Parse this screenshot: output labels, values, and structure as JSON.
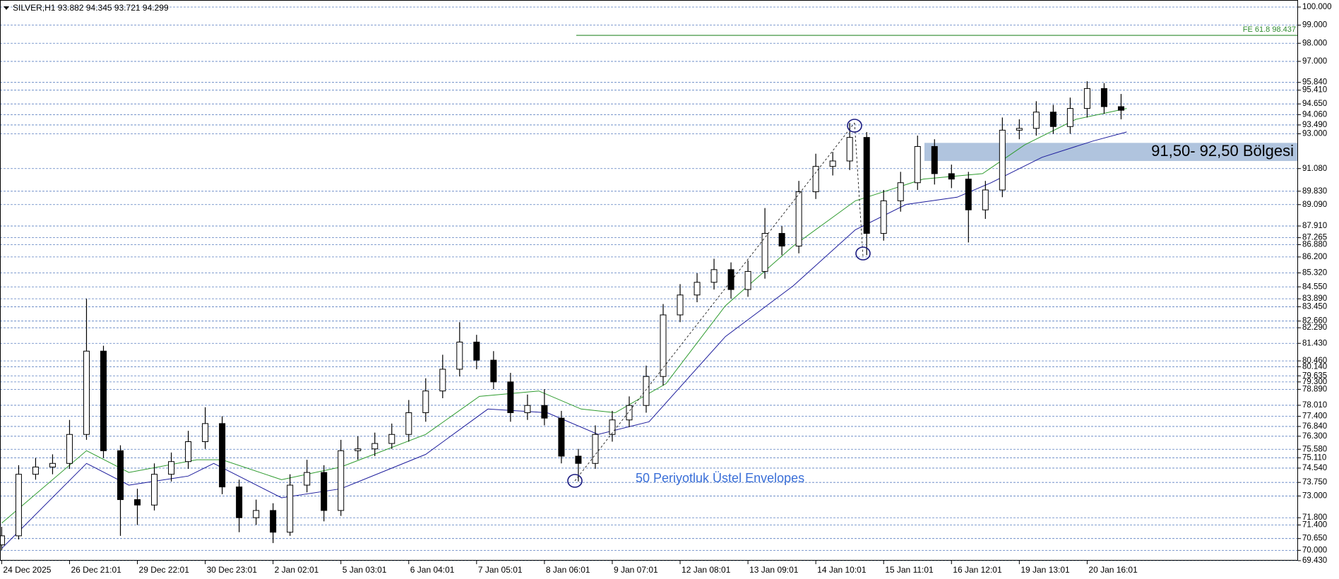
{
  "chart_data": {
    "type": "candlestick",
    "title": "SILVER,H1 93.882 94.345 93.721 94.299",
    "annotation": "50 Periyotluk Üstel Envelopes",
    "zone": {
      "label": "91,50- 92,50 Bölgesi",
      "low": 91.5,
      "high": 92.5,
      "color": "#b0c4de"
    },
    "fe_line": {
      "label": "FE 61.8 98.437",
      "value": 98.437,
      "color": "#2e8b2e"
    },
    "xlim": [
      -0.6,
      458.6
    ],
    "ylim": [
      69.43,
      100.35
    ],
    "grid": true,
    "up_color": "#ffffff",
    "down_color": "#000000",
    "x": [
      0,
      6,
      12,
      18,
      24,
      30,
      36,
      42,
      48,
      54,
      60,
      66,
      72,
      78,
      84,
      90,
      96,
      102,
      108,
      114,
      120,
      126,
      132,
      138,
      144,
      150,
      156,
      162,
      168,
      174,
      180,
      186,
      192,
      198,
      204,
      210,
      216,
      222,
      228,
      234,
      240,
      246,
      252,
      258,
      264,
      270,
      276,
      282,
      288,
      294,
      300,
      306,
      312,
      318,
      324,
      330,
      336,
      342,
      348,
      354,
      360,
      366,
      372,
      378,
      384,
      390,
      396
    ],
    "open": [
      70.3,
      70.8,
      74.2,
      74.6,
      74.8,
      76.4,
      81.0,
      75.5,
      72.8,
      72.5,
      74.2,
      74.9,
      76.0,
      77.0,
      73.5,
      71.8,
      72.2,
      71.0,
      73.6,
      74.3,
      72.2,
      75.5,
      75.6,
      75.9,
      76.4,
      77.6,
      78.8,
      80.0,
      81.5,
      80.5,
      79.3,
      77.6,
      78.0,
      77.3,
      75.2,
      74.8,
      76.4,
      77.2,
      78.0,
      79.6,
      83.0,
      84.1,
      84.8,
      85.5,
      84.4,
      85.4,
      87.5,
      86.8,
      89.8,
      91.2,
      91.5,
      92.8,
      87.5,
      89.3,
      90.3,
      92.3,
      90.8,
      90.5,
      88.8,
      89.9,
      93.2,
      93.3,
      94.2,
      93.4,
      94.4,
      95.5,
      94.5
    ],
    "high": [
      71.3,
      74.7,
      75.1,
      75.3,
      77.2,
      83.9,
      81.3,
      75.8,
      73.4,
      74.8,
      75.4,
      76.6,
      77.9,
      77.4,
      73.9,
      72.8,
      72.6,
      74.2,
      75.0,
      74.7,
      76.1,
      76.3,
      76.5,
      77.0,
      78.3,
      79.5,
      80.8,
      82.6,
      81.9,
      81.0,
      79.8,
      78.6,
      78.9,
      77.7,
      75.6,
      76.9,
      77.7,
      78.5,
      80.2,
      83.6,
      84.7,
      85.3,
      86.1,
      85.9,
      86.0,
      88.9,
      87.9,
      90.4,
      91.9,
      92.0,
      93.6,
      93.1,
      89.9,
      90.9,
      92.9,
      92.7,
      91.3,
      90.9,
      90.4,
      93.9,
      93.8,
      94.8,
      94.6,
      95.0,
      95.9,
      95.8,
      95.2
    ],
    "low": [
      70.0,
      70.6,
      73.9,
      74.2,
      74.5,
      76.1,
      75.1,
      70.8,
      71.4,
      72.2,
      73.8,
      74.5,
      75.6,
      73.1,
      71.0,
      71.4,
      70.4,
      70.8,
      73.2,
      71.6,
      71.9,
      75.0,
      75.2,
      75.6,
      76.0,
      77.1,
      78.4,
      79.6,
      80.0,
      78.9,
      77.1,
      77.2,
      76.9,
      74.8,
      73.8,
      74.5,
      76.0,
      76.8,
      77.6,
      79.1,
      82.6,
      83.7,
      84.4,
      83.9,
      84.0,
      85.0,
      86.3,
      86.4,
      89.4,
      90.7,
      91.0,
      86.3,
      87.1,
      88.7,
      89.9,
      90.2,
      90.0,
      87.0,
      88.3,
      89.5,
      92.7,
      92.9,
      93.0,
      93.0,
      93.9,
      94.1,
      93.8
    ],
    "close": [
      70.8,
      74.2,
      74.6,
      74.8,
      76.4,
      81.0,
      75.5,
      72.8,
      72.5,
      74.2,
      74.9,
      76.0,
      77.0,
      73.5,
      71.8,
      72.2,
      71.0,
      73.6,
      74.3,
      72.2,
      75.5,
      75.6,
      75.9,
      76.4,
      77.6,
      78.8,
      80.0,
      81.5,
      80.5,
      79.3,
      77.6,
      78.0,
      77.3,
      75.2,
      74.8,
      76.4,
      77.2,
      78.0,
      79.6,
      83.0,
      84.1,
      84.8,
      85.5,
      84.4,
      85.4,
      87.5,
      86.8,
      89.8,
      91.2,
      91.5,
      92.8,
      87.5,
      89.3,
      90.3,
      92.3,
      90.8,
      90.5,
      88.8,
      89.9,
      93.2,
      93.3,
      94.2,
      93.4,
      94.4,
      95.5,
      94.5,
      94.3
    ],
    "envelopes": [
      {
        "color": "#2e9b2e",
        "x": [
          0,
          30,
          45,
          69,
          78,
          99,
          120,
          150,
          169,
          190,
          205,
          217,
          235,
          256,
          280,
          302,
          326,
          347,
          362,
          380,
          398
        ],
        "values": [
          71.5,
          75.5,
          74.3,
          75.0,
          75.0,
          73.9,
          74.6,
          76.4,
          78.5,
          78.8,
          77.8,
          77.6,
          79.2,
          83.5,
          86.8,
          89.3,
          90.5,
          90.8,
          92.4,
          93.8,
          94.4
        ]
      },
      {
        "color": "#1c1c9c",
        "x": [
          0,
          30,
          45,
          66,
          75,
          99,
          120,
          150,
          172,
          193,
          211,
          229,
          256,
          280,
          302,
          320,
          338,
          350,
          368,
          386,
          398
        ],
        "values": [
          70.1,
          74.8,
          73.6,
          74.1,
          74.8,
          72.9,
          73.4,
          75.3,
          77.8,
          77.6,
          76.4,
          77.1,
          81.8,
          84.6,
          87.7,
          89.1,
          89.5,
          90.3,
          91.7,
          92.6,
          93.1
        ]
      }
    ],
    "xticks": [
      {
        "value": 0,
        "label": "24 Dec 2025"
      },
      {
        "value": 24,
        "label": "26 Dec 21:01"
      },
      {
        "value": 48,
        "label": "29 Dec 22:01"
      },
      {
        "value": 72,
        "label": "30 Dec 23:01"
      },
      {
        "value": 96,
        "label": "2 Jan 02:01"
      },
      {
        "value": 120,
        "label": "5 Jan 03:01"
      },
      {
        "value": 144,
        "label": "6 Jan 04:01"
      },
      {
        "value": 168,
        "label": "7 Jan 05:01"
      },
      {
        "value": 192,
        "label": "8 Jan 06:01"
      },
      {
        "value": 216,
        "label": "9 Jan 07:01"
      },
      {
        "value": 240,
        "label": "12 Jan 08:01"
      },
      {
        "value": 264,
        "label": "13 Jan 09:01"
      },
      {
        "value": 288,
        "label": "14 Jan 10:01"
      },
      {
        "value": 312,
        "label": "15 Jan 11:01"
      },
      {
        "value": 336,
        "label": "16 Jan 12:01"
      },
      {
        "value": 360,
        "label": "19 Jan 13:01"
      },
      {
        "value": 384,
        "label": "20 Jan 16:01"
      }
    ],
    "yticks": [
      {
        "value": 100,
        "label": "100.000"
      },
      {
        "value": 99,
        "label": "99.000"
      },
      {
        "value": 98,
        "label": "98.000"
      },
      {
        "value": 97,
        "label": "97.000"
      },
      {
        "value": 95.84,
        "label": "95.840"
      },
      {
        "value": 95.41,
        "label": "95.410"
      },
      {
        "value": 94.65,
        "label": "94.650"
      },
      {
        "value": 94.06,
        "label": "94.060"
      },
      {
        "value": 93.49,
        "label": "93.490"
      },
      {
        "value": 93,
        "label": "93.000"
      },
      {
        "value": 91.08,
        "label": "91.080"
      },
      {
        "value": 89.83,
        "label": "89.830"
      },
      {
        "value": 89.09,
        "label": "89.090"
      },
      {
        "value": 87.91,
        "label": "87.910"
      },
      {
        "value": 87.265,
        "label": "87.265"
      },
      {
        "value": 86.88,
        "label": "86.880"
      },
      {
        "value": 86.2,
        "label": "86.200"
      },
      {
        "value": 85.32,
        "label": "85.320"
      },
      {
        "value": 84.55,
        "label": "84.550"
      },
      {
        "value": 83.89,
        "label": "83.890"
      },
      {
        "value": 83.45,
        "label": "83.450"
      },
      {
        "value": 82.66,
        "label": "82.660"
      },
      {
        "value": 82.29,
        "label": "82.290"
      },
      {
        "value": 81.43,
        "label": "81.430"
      },
      {
        "value": 80.46,
        "label": "80.460"
      },
      {
        "value": 80.14,
        "label": "80.140"
      },
      {
        "value": 79.635,
        "label": "79.635"
      },
      {
        "value": 79.3,
        "label": "79.300"
      },
      {
        "value": 78.89,
        "label": "78.890"
      },
      {
        "value": 78.01,
        "label": "78.010"
      },
      {
        "value": 77.4,
        "label": "77.400"
      },
      {
        "value": 76.84,
        "label": "76.840"
      },
      {
        "value": 76.3,
        "label": "76.300"
      },
      {
        "value": 75.58,
        "label": "75.580"
      },
      {
        "value": 75.11,
        "label": "75.110"
      },
      {
        "value": 74.54,
        "label": "74.540"
      },
      {
        "value": 73.75,
        "label": "73.750"
      },
      {
        "value": 73,
        "label": "73.000"
      },
      {
        "value": 71.8,
        "label": "71.800"
      },
      {
        "value": 71.4,
        "label": "71.400"
      },
      {
        "value": 70.65,
        "label": "70.650"
      },
      {
        "value": 70,
        "label": "70.000"
      },
      {
        "value": 69.43,
        "label": "69.430"
      }
    ]
  }
}
